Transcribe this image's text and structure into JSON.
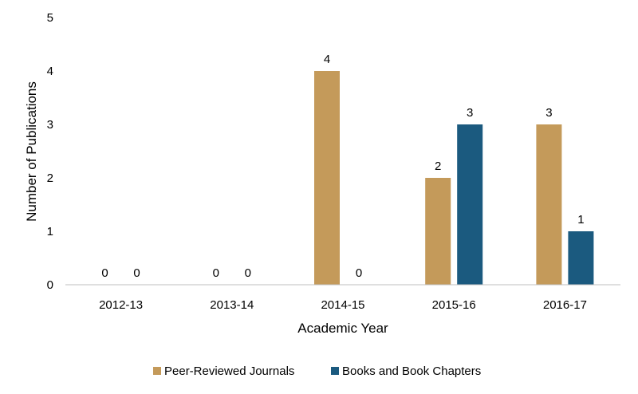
{
  "chart_data": {
    "type": "bar",
    "title": "",
    "xlabel": "Academic Year",
    "ylabel": "Number of Publications",
    "categories": [
      "2012-13",
      "2013-14",
      "2014-15",
      "2015-16",
      "2016-17"
    ],
    "series": [
      {
        "name": "Peer-Reviewed Journals",
        "color": "#C49A5A",
        "values": [
          0,
          0,
          4,
          2,
          3
        ]
      },
      {
        "name": "Books and Book Chapters",
        "color": "#1B5A7F",
        "values": [
          0,
          0,
          0,
          3,
          1
        ]
      }
    ],
    "ylim": [
      0,
      5
    ],
    "yticks": [
      "0",
      "1",
      "2",
      "3",
      "4",
      "5"
    ],
    "grid": false,
    "legend_position": "bottom"
  }
}
